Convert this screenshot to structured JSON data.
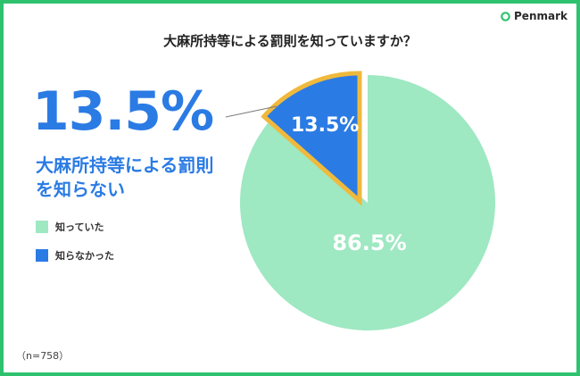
{
  "brand": {
    "name": "Penmark",
    "icon": "penmark-logo-icon"
  },
  "title": "大麻所持等による罰則を知っていますか？",
  "highlight": {
    "value": "13.5%",
    "label_lines": [
      "大麻所持等による罰則",
      "を知らない"
    ]
  },
  "note": "（n=758）",
  "colors": {
    "frame": "#2fc26e",
    "accent": "#2b7be4",
    "highlight_outline": "#f0b93c"
  },
  "chart_data": {
    "type": "pie",
    "title": "大麻所持等による罰則を知っていますか？",
    "slices": [
      {
        "label": "知っていた",
        "value": 86.5,
        "value_label": "86.5%",
        "color": "#9ee8c2"
      },
      {
        "label": "知らなかった",
        "value": 13.5,
        "value_label": "13.5%",
        "color": "#2b7be4",
        "exploded": true
      }
    ],
    "start_angle": "12 o'clock",
    "direction": "counter-clockwise for highlighted slice",
    "legend_position": "left"
  }
}
